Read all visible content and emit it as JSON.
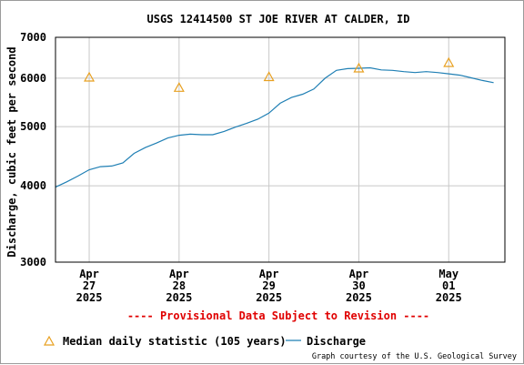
{
  "chart_data": {
    "type": "line",
    "title": "USGS 12414500 ST JOE RIVER AT CALDER, ID",
    "ylabel": "Discharge, cubic feet per second",
    "y_scale": "log",
    "ylim": [
      3000,
      7000
    ],
    "y_ticks": [
      {
        "value": 3000,
        "label": "3000"
      },
      {
        "value": 4000,
        "label": "4000"
      },
      {
        "value": 5000,
        "label": "5000"
      },
      {
        "value": 6000,
        "label": "6000"
      },
      {
        "value": 7000,
        "label": "7000"
      }
    ],
    "xlim": [
      "2025-04-26T15:00",
      "2025-05-01T15:00"
    ],
    "x_ticks": [
      {
        "value": "2025-04-27T00:00",
        "label": [
          "Apr",
          "27",
          "2025"
        ]
      },
      {
        "value": "2025-04-28T00:00",
        "label": [
          "Apr",
          "28",
          "2025"
        ]
      },
      {
        "value": "2025-04-29T00:00",
        "label": [
          "Apr",
          "29",
          "2025"
        ]
      },
      {
        "value": "2025-04-30T00:00",
        "label": [
          "Apr",
          "30",
          "2025"
        ]
      },
      {
        "value": "2025-05-01T00:00",
        "label": [
          "May",
          "01",
          "2025"
        ]
      }
    ],
    "grid": true,
    "series": [
      {
        "name": "Discharge",
        "kind": "line",
        "color": "#1f7fb4",
        "x": [
          "2025-04-26T15:00",
          "2025-04-26T18:00",
          "2025-04-26T21:00",
          "2025-04-27T00:00",
          "2025-04-27T03:00",
          "2025-04-27T06:00",
          "2025-04-27T09:00",
          "2025-04-27T12:00",
          "2025-04-27T15:00",
          "2025-04-27T18:00",
          "2025-04-27T21:00",
          "2025-04-28T00:00",
          "2025-04-28T03:00",
          "2025-04-28T06:00",
          "2025-04-28T09:00",
          "2025-04-28T12:00",
          "2025-04-28T15:00",
          "2025-04-28T18:00",
          "2025-04-28T21:00",
          "2025-04-29T00:00",
          "2025-04-29T03:00",
          "2025-04-29T06:00",
          "2025-04-29T09:00",
          "2025-04-29T12:00",
          "2025-04-29T15:00",
          "2025-04-29T18:00",
          "2025-04-29T21:00",
          "2025-04-30T00:00",
          "2025-04-30T03:00",
          "2025-04-30T06:00",
          "2025-04-30T09:00",
          "2025-04-30T12:00",
          "2025-04-30T15:00",
          "2025-04-30T18:00",
          "2025-04-30T21:00",
          "2025-05-01T00:00",
          "2025-05-01T03:00",
          "2025-05-01T06:00",
          "2025-05-01T09:00",
          "2025-05-01T12:00"
        ],
        "values": [
          3980,
          4060,
          4150,
          4250,
          4300,
          4310,
          4360,
          4520,
          4620,
          4700,
          4790,
          4840,
          4860,
          4850,
          4850,
          4910,
          4990,
          5060,
          5140,
          5260,
          5460,
          5580,
          5650,
          5760,
          6000,
          6180,
          6220,
          6230,
          6240,
          6190,
          6180,
          6150,
          6130,
          6150,
          6130,
          6100,
          6070,
          6010,
          5950,
          5900
        ]
      },
      {
        "name": "Median daily statistic (105 years)",
        "kind": "marker",
        "color": "#e8a020",
        "x": [
          "2025-04-27T00:00",
          "2025-04-28T00:00",
          "2025-04-29T00:00",
          "2025-04-30T00:00",
          "2025-05-01T00:00"
        ],
        "values": [
          6030,
          5800,
          6040,
          6240,
          6370
        ]
      }
    ],
    "legend": "bottom",
    "annotation": "---- Provisional Data Subject to Revision ----",
    "credit": "Graph courtesy of the U.S. Geological Survey"
  },
  "colors": {
    "line": "#1f7fb4",
    "marker": "#e8a020",
    "annotation": "#e00000",
    "grid": "#c8c8c8"
  }
}
